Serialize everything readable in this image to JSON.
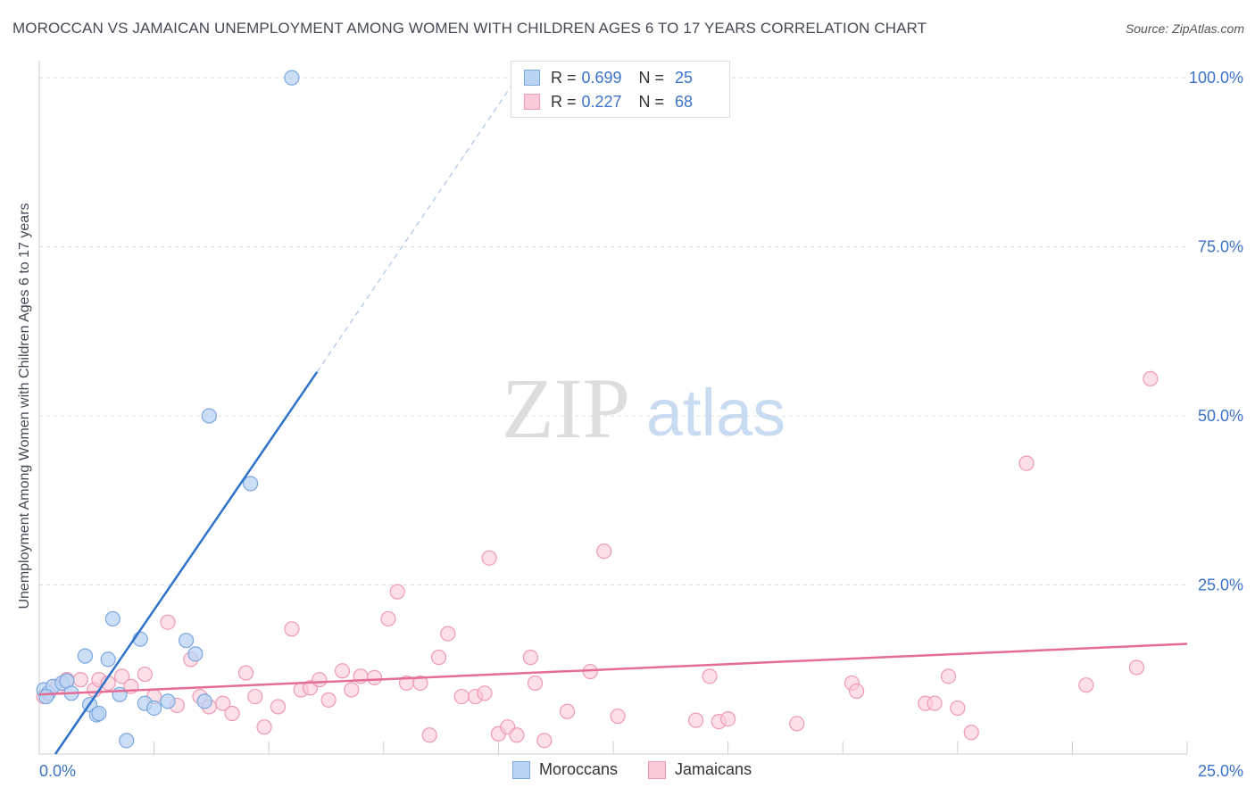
{
  "title": "MOROCCAN VS JAMAICAN UNEMPLOYMENT AMONG WOMEN WITH CHILDREN AGES 6 TO 17 YEARS CORRELATION CHART",
  "source": "Source: ZipAtlas.com",
  "watermark": {
    "zip": "ZIP",
    "atlas": "atlas"
  },
  "legend": {
    "r_label": "R = ",
    "n_label": "N = ",
    "moroccans": {
      "r": "0.699",
      "n": "25"
    },
    "jamaicans": {
      "r": "0.227",
      "n": "68"
    }
  },
  "bottom_legend": {
    "moroccans": "Moroccans",
    "jamaicans": "Jamaicans"
  },
  "colors": {
    "moroccan_fill": "#b9d3f3",
    "moroccan_stroke": "#7aa7e0",
    "moroccan_line": "#2f72c9",
    "jamaican_fill": "#fbcad8",
    "jamaican_stroke": "#ee99b4",
    "jamaican_line": "#e56c95",
    "tick_label": "#3a73c9",
    "grid": "#dcdcdc"
  },
  "chart_data": {
    "type": "scatter",
    "title": "MOROCCAN VS JAMAICAN UNEMPLOYMENT AMONG WOMEN WITH CHILDREN AGES 6 TO 17 YEARS CORRELATION CHART",
    "xlabel": "",
    "ylabel": "Unemployment Among Women with Children Ages 6 to 17 years",
    "xlim": [
      0,
      25
    ],
    "ylim": [
      0,
      102
    ],
    "x_tick_labels": [
      "0.0%",
      "25.0%"
    ],
    "y_ticks": [
      25,
      50,
      75,
      100
    ],
    "y_tick_labels": [
      "25.0%",
      "50.0%",
      "75.0%",
      "100.0%"
    ],
    "series": [
      {
        "name": "Moroccans",
        "points": [
          [
            0.1,
            9.5
          ],
          [
            0.2,
            9.0
          ],
          [
            0.3,
            10.0
          ],
          [
            0.5,
            10.5
          ],
          [
            0.6,
            10.8
          ],
          [
            0.7,
            9.0
          ],
          [
            1.0,
            14.5
          ],
          [
            1.1,
            7.3
          ],
          [
            1.25,
            5.8
          ],
          [
            1.3,
            6.0
          ],
          [
            1.5,
            14.0
          ],
          [
            1.6,
            20.0
          ],
          [
            1.75,
            8.8
          ],
          [
            1.9,
            2.0
          ],
          [
            2.2,
            17.0
          ],
          [
            2.3,
            7.5
          ],
          [
            2.5,
            6.8
          ],
          [
            2.8,
            7.8
          ],
          [
            3.2,
            16.8
          ],
          [
            3.4,
            14.8
          ],
          [
            3.6,
            7.8
          ],
          [
            3.7,
            50.0
          ],
          [
            4.6,
            40.0
          ],
          [
            5.5,
            100.0
          ],
          [
            0.15,
            8.5
          ]
        ],
        "trend": {
          "x": [
            0.35,
            6.05
          ],
          "y": [
            0.0,
            56.5
          ]
        },
        "trend_dashed": {
          "x": [
            6.05,
            10.3
          ],
          "y": [
            56.5,
            99.0
          ]
        }
      },
      {
        "name": "Jamaicans",
        "points": [
          [
            0.1,
            8.5
          ],
          [
            0.4,
            10.0
          ],
          [
            0.6,
            11.0
          ],
          [
            0.9,
            11.0
          ],
          [
            1.2,
            9.5
          ],
          [
            1.3,
            11.0
          ],
          [
            1.5,
            10.5
          ],
          [
            1.8,
            11.5
          ],
          [
            2.0,
            10.0
          ],
          [
            2.3,
            11.8
          ],
          [
            2.5,
            8.5
          ],
          [
            2.8,
            19.5
          ],
          [
            3.0,
            7.2
          ],
          [
            3.3,
            14.0
          ],
          [
            3.5,
            8.5
          ],
          [
            3.7,
            7.0
          ],
          [
            4.0,
            7.5
          ],
          [
            4.2,
            6.0
          ],
          [
            4.5,
            12.0
          ],
          [
            4.7,
            8.5
          ],
          [
            4.9,
            4.0
          ],
          [
            5.2,
            7.0
          ],
          [
            5.5,
            18.5
          ],
          [
            5.7,
            9.5
          ],
          [
            5.9,
            9.8
          ],
          [
            6.1,
            11.0
          ],
          [
            6.3,
            8.0
          ],
          [
            6.6,
            12.3
          ],
          [
            6.8,
            9.5
          ],
          [
            7.0,
            11.5
          ],
          [
            7.3,
            11.3
          ],
          [
            7.6,
            20.0
          ],
          [
            7.8,
            24.0
          ],
          [
            8.0,
            10.5
          ],
          [
            8.3,
            10.5
          ],
          [
            8.5,
            2.8
          ],
          [
            8.7,
            14.3
          ],
          [
            8.9,
            17.8
          ],
          [
            9.2,
            8.5
          ],
          [
            9.5,
            8.5
          ],
          [
            9.7,
            9.0
          ],
          [
            9.8,
            29.0
          ],
          [
            10.0,
            3.0
          ],
          [
            10.2,
            4.0
          ],
          [
            10.4,
            2.8
          ],
          [
            10.7,
            14.3
          ],
          [
            10.8,
            10.5
          ],
          [
            11.0,
            2.0
          ],
          [
            11.5,
            6.3
          ],
          [
            12.0,
            12.2
          ],
          [
            12.3,
            30.0
          ],
          [
            14.3,
            5.0
          ],
          [
            14.6,
            11.5
          ],
          [
            14.8,
            4.8
          ],
          [
            15.0,
            5.2
          ],
          [
            16.5,
            4.5
          ],
          [
            17.7,
            10.5
          ],
          [
            17.8,
            9.3
          ],
          [
            19.3,
            7.5
          ],
          [
            19.5,
            7.5
          ],
          [
            20.0,
            6.8
          ],
          [
            20.3,
            3.2
          ],
          [
            21.5,
            43.0
          ],
          [
            22.8,
            10.2
          ],
          [
            23.9,
            12.8
          ],
          [
            24.2,
            55.5
          ],
          [
            19.8,
            11.5
          ],
          [
            12.6,
            5.6
          ]
        ],
        "trend": {
          "x": [
            0.0,
            25.0
          ],
          "y": [
            8.8,
            16.3
          ]
        }
      }
    ]
  }
}
